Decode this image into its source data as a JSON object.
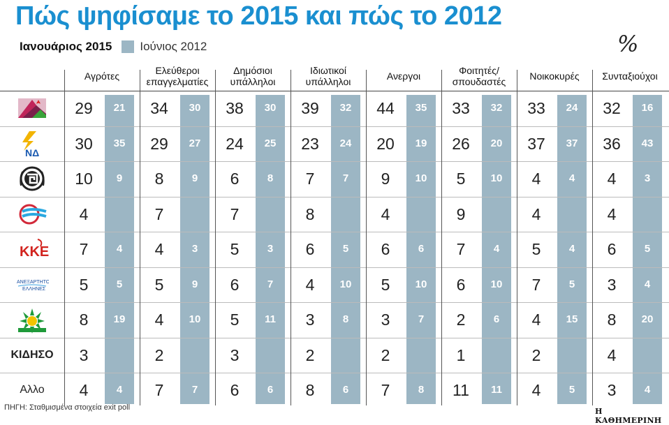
{
  "title": "Πώς ψηφίσαμε το 2015 και πώς το 2012",
  "legend": {
    "series_2015": "Ιανουάριος 2015",
    "series_2012": "Ιούνιος 2012"
  },
  "unit": "%",
  "colors": {
    "title": "#1a8fd0",
    "shade_2012": "#9cb6c4",
    "text_2012": "#ffffff"
  },
  "chart_data": {
    "type": "table",
    "title": "Πώς ψηφίσαμε το 2015 και πώς το 2012",
    "unit": "%",
    "groups": [
      {
        "label": "Αγρότες"
      },
      {
        "label": "Ελεύθεροι επαγγελματίες"
      },
      {
        "label": "Δημόσιοι υπάλληλοι"
      },
      {
        "label": "Ιδιωτικοί υπάλληλοι"
      },
      {
        "label": "Ανεργοι"
      },
      {
        "label": "Φοιτητές/ σπουδαστές"
      },
      {
        "label": "Νοικοκυρές"
      },
      {
        "label": "Συνταξιούχοι"
      }
    ],
    "series": [
      {
        "name": "Ιανουάριος 2015"
      },
      {
        "name": "Ιούνιος 2012"
      }
    ],
    "rows": [
      {
        "party": "",
        "icon": "syriza-logo-icon",
        "v2015": [
          "29",
          "34",
          "38",
          "39",
          "44",
          "33",
          "33",
          "32"
        ],
        "v2012": [
          "21",
          "30",
          "30",
          "32",
          "35",
          "32",
          "24",
          "16"
        ]
      },
      {
        "party": "",
        "icon": "nd-logo-icon",
        "v2015": [
          "30",
          "29",
          "24",
          "23",
          "20",
          "26",
          "37",
          "36"
        ],
        "v2012": [
          "35",
          "27",
          "25",
          "24",
          "19",
          "20",
          "37",
          "43"
        ]
      },
      {
        "party": "",
        "icon": "golden-dawn-logo-icon",
        "v2015": [
          "10",
          "8",
          "6",
          "7",
          "9",
          "5",
          "4",
          "4"
        ],
        "v2012": [
          "9",
          "9",
          "8",
          "7",
          "10",
          "10",
          "4",
          "3"
        ]
      },
      {
        "party": "",
        "icon": "potami-logo-icon",
        "v2015": [
          "4",
          "7",
          "7",
          "8",
          "4",
          "9",
          "4",
          "4"
        ],
        "v2012": [
          "",
          "",
          "",
          "",
          "",
          "",
          "",
          ""
        ]
      },
      {
        "party": "",
        "icon": "kke-logo-icon",
        "v2015": [
          "7",
          "4",
          "5",
          "6",
          "6",
          "7",
          "5",
          "6"
        ],
        "v2012": [
          "4",
          "3",
          "3",
          "5",
          "6",
          "4",
          "4",
          "5"
        ]
      },
      {
        "party": "",
        "icon": "anel-logo-icon",
        "v2015": [
          "5",
          "5",
          "6",
          "4",
          "5",
          "6",
          "7",
          "3"
        ],
        "v2012": [
          "5",
          "9",
          "7",
          "10",
          "10",
          "10",
          "5",
          "4"
        ]
      },
      {
        "party": "",
        "icon": "pasok-logo-icon",
        "v2015": [
          "8",
          "4",
          "5",
          "3",
          "3",
          "2",
          "4",
          "8"
        ],
        "v2012": [
          "19",
          "10",
          "11",
          "8",
          "7",
          "6",
          "15",
          "20"
        ]
      },
      {
        "party": "ΚΙΔΗΣΟ",
        "icon": "",
        "v2015": [
          "3",
          "2",
          "3",
          "2",
          "2",
          "1",
          "2",
          "4"
        ],
        "v2012": [
          "",
          "",
          "",
          "",
          "",
          "",
          "",
          ""
        ]
      },
      {
        "party": "Αλλο",
        "icon": "",
        "v2015": [
          "4",
          "7",
          "6",
          "8",
          "7",
          "11",
          "4",
          "3"
        ],
        "v2012": [
          "4",
          "7",
          "6",
          "6",
          "8",
          "11",
          "5",
          "4"
        ]
      }
    ]
  },
  "footer": {
    "source": "ΠΗΓΗ: Σταθμισμένα στοιχεία exit poll",
    "brand": "Η ΚΑΘΗΜΕΡΙΝΗ"
  }
}
